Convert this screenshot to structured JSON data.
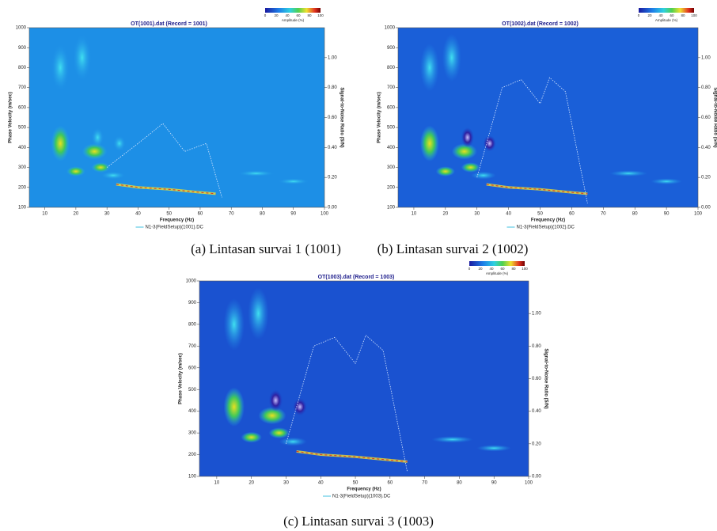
{
  "panels": [
    {
      "title": "OT(1001).dat (Record = 1001)",
      "legend": "N1-3(FieldSetup)(1001).DC",
      "caption": "(a) Lintasan survai 1 (1001)"
    },
    {
      "title": "OT(1002).dat (Record = 1002)",
      "legend": "N1-3(FieldSetup)(1002).DC",
      "caption": "(b) Lintasan survai 2 (1002)"
    },
    {
      "title": "OT(1003).dat (Record = 1003)",
      "legend": "N1-3(FieldSetup)(1003).DC",
      "caption": "(c) Lintasan survai 3 (1003)"
    }
  ],
  "axes": {
    "y_label": "Phase Velocity (m/sec)",
    "x_label": "Frequency (Hz)",
    "y2_label": "Signal-to-Noise Ratio (S/N)",
    "colorbar_label": "Amplitude (%)",
    "yticks": [
      "100",
      "200",
      "300",
      "400",
      "500",
      "600",
      "700",
      "800",
      "900",
      "1000"
    ],
    "xticks": [
      "10",
      "20",
      "30",
      "40",
      "50",
      "60",
      "70",
      "80",
      "90",
      "100"
    ],
    "y2ticks": [
      "0.00",
      "0.20",
      "0.40",
      "0.60",
      "0.80",
      "1.00"
    ],
    "colorbar_ticks": [
      "0",
      "20",
      "40",
      "60",
      "80",
      "100"
    ]
  }
}
